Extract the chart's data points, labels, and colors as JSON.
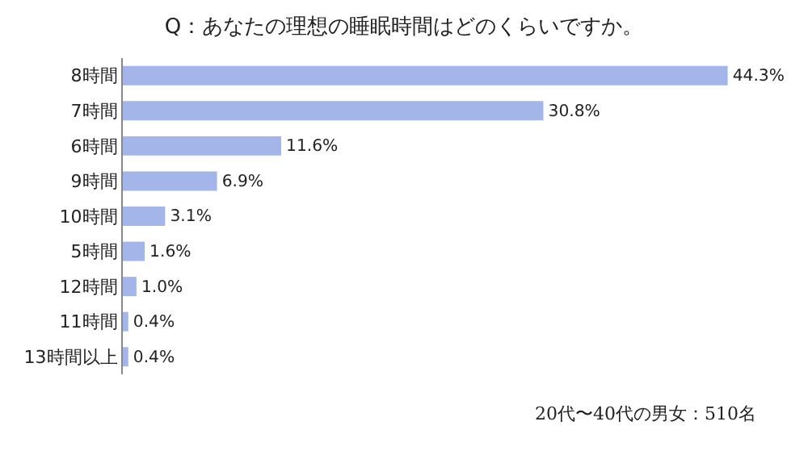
{
  "chart_data": {
    "type": "bar",
    "orientation": "horizontal",
    "title": "Q：あなたの理想の睡眠時間はどのくらいですか。",
    "categories": [
      "8時間",
      "7時間",
      "6時間",
      "9時間",
      "10時間",
      "5時間",
      "12時間",
      "11時間",
      "13時間以上"
    ],
    "values": [
      44.3,
      30.8,
      11.6,
      6.9,
      3.1,
      1.6,
      1.0,
      0.4,
      0.4
    ],
    "value_labels": [
      "44.3%",
      "30.8%",
      "11.6%",
      "6.9%",
      "3.1%",
      "1.6%",
      "1.0%",
      "0.4%",
      "0.4%"
    ],
    "color": "#a3b5e9",
    "grid": false,
    "legend": false,
    "annotations": [
      "20代〜40代の男女：510名"
    ]
  }
}
